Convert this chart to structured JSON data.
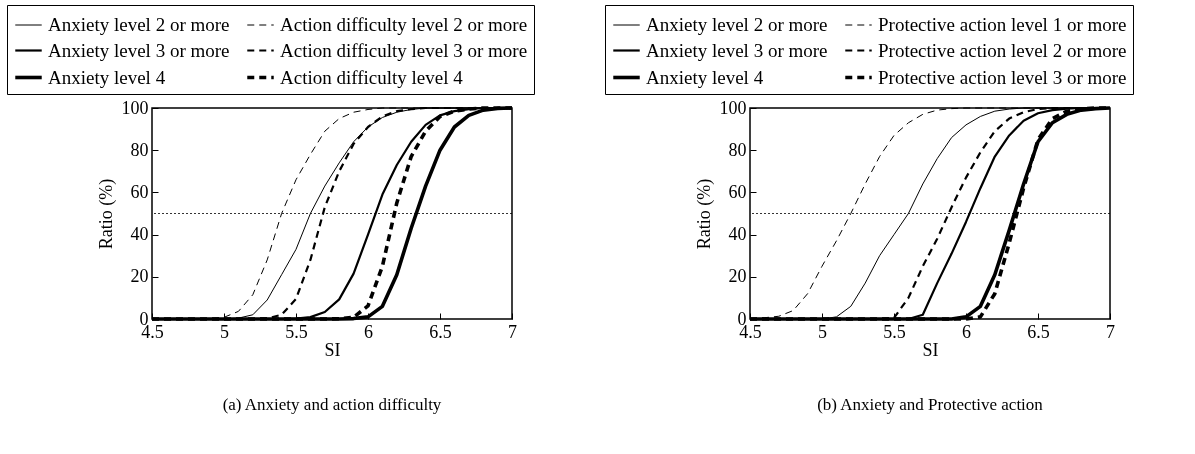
{
  "chart_data": [
    {
      "type": "line",
      "title": "(a) Anxiety and action difficulty",
      "xlabel": "SI",
      "ylabel": "Ratio (%)",
      "x": [
        4.5,
        4.6,
        4.7,
        4.8,
        4.9,
        5.0,
        5.1,
        5.2,
        5.3,
        5.4,
        5.5,
        5.6,
        5.7,
        5.8,
        5.9,
        6.0,
        6.1,
        6.2,
        6.3,
        6.4,
        6.5,
        6.6,
        6.7,
        6.8,
        6.9,
        7.0
      ],
      "xlim": [
        4.5,
        7
      ],
      "xticks": [
        4.5,
        5,
        5.5,
        6,
        6.5,
        7
      ],
      "ylim": [
        0,
        100
      ],
      "yticks": [
        0,
        20,
        40,
        60,
        80,
        100
      ],
      "grid": false,
      "legend": "top",
      "marker": "none",
      "ref_lines": [
        {
          "axis": "y",
          "value": 50,
          "line_style": "dotted",
          "color": "#000000"
        }
      ],
      "series": [
        {
          "name": "Anxiety level 2 or more",
          "color": "#000000",
          "line_style": "solid",
          "values": [
            0,
            0,
            0,
            0,
            0,
            0,
            0.4,
            2,
            9,
            21,
            33,
            50,
            63,
            74,
            84,
            91,
            95.5,
            98,
            99.3,
            100,
            100,
            100,
            100,
            100,
            100,
            100
          ]
        },
        {
          "name": "Anxiety level 3 or more",
          "color": "#000000",
          "line_style": "solid",
          "values": [
            0,
            0,
            0,
            0,
            0,
            0,
            0,
            0,
            0,
            0,
            0.2,
            0.9,
            3.3,
            9.3,
            21.5,
            40,
            59,
            73,
            84,
            92,
            96.5,
            98.5,
            99.5,
            100,
            100,
            100
          ]
        },
        {
          "name": "Anxiety level 4",
          "color": "#000000",
          "line_style": "solid",
          "values": [
            0,
            0,
            0,
            0,
            0,
            0,
            0,
            0,
            0,
            0,
            0,
            0,
            0,
            0,
            0.2,
            1,
            6,
            21,
            43,
            63,
            80,
            91,
            96.5,
            99,
            99.8,
            100
          ]
        },
        {
          "name": "Action difficulty level 2 or more",
          "color": "#000000",
          "line_style": "dashed",
          "values": [
            0,
            0,
            0,
            0,
            0.1,
            0.8,
            3.6,
            11.5,
            28,
            50,
            66,
            78,
            89,
            95,
            98,
            99.3,
            100,
            100,
            100,
            100,
            100,
            100,
            100,
            100,
            100,
            100
          ]
        },
        {
          "name": "Action difficulty level 3 or more",
          "color": "#000000",
          "line_style": "dashed",
          "values": [
            0,
            0,
            0,
            0,
            0,
            0,
            0,
            0,
            0.3,
            2,
            9.5,
            28,
            53,
            70,
            83,
            91,
            96,
            98.5,
            99.5,
            100,
            100,
            100,
            100,
            100,
            100,
            100
          ]
        },
        {
          "name": "Action difficulty level 4",
          "color": "#000000",
          "line_style": "dashed",
          "values": [
            0,
            0,
            0,
            0,
            0,
            0,
            0,
            0,
            0,
            0,
            0,
            0,
            0,
            0.1,
            0.8,
            6.2,
            25,
            55,
            77,
            89,
            96,
            98.5,
            99.5,
            100,
            100,
            100
          ]
        }
      ]
    },
    {
      "type": "line",
      "title": "(b) Anxiety and Protective action",
      "xlabel": "SI",
      "ylabel": "Ratio (%)",
      "x": [
        4.5,
        4.6,
        4.7,
        4.8,
        4.9,
        5.0,
        5.1,
        5.2,
        5.3,
        5.4,
        5.5,
        5.6,
        5.7,
        5.8,
        5.9,
        6.0,
        6.1,
        6.2,
        6.3,
        6.4,
        6.5,
        6.6,
        6.7,
        6.8,
        6.9,
        7.0
      ],
      "xlim": [
        4.5,
        7
      ],
      "xticks": [
        4.5,
        5,
        5.5,
        6,
        6.5,
        7
      ],
      "ylim": [
        0,
        100
      ],
      "yticks": [
        0,
        20,
        40,
        60,
        80,
        100
      ],
      "grid": false,
      "legend": "top",
      "marker": "none",
      "ref_lines": [
        {
          "axis": "y",
          "value": 50,
          "line_style": "dotted",
          "color": "#000000"
        }
      ],
      "series": [
        {
          "name": "Anxiety level 2 or more",
          "color": "#000000",
          "line_style": "solid",
          "values": [
            0,
            0,
            0,
            0,
            0,
            0,
            1,
            6,
            17,
            30,
            40,
            50,
            64,
            76,
            86,
            92,
            96,
            98.5,
            99.5,
            100,
            100,
            100,
            100,
            100,
            100,
            100
          ]
        },
        {
          "name": "Anxiety level 3 or more",
          "color": "#000000",
          "line_style": "solid",
          "values": [
            0,
            0,
            0,
            0,
            0,
            0,
            0,
            0,
            0,
            0,
            0,
            0,
            2,
            17,
            31,
            46,
            62,
            77,
            87,
            94,
            97.5,
            99,
            99.7,
            100,
            100,
            100
          ]
        },
        {
          "name": "Anxiety level 4",
          "color": "#000000",
          "line_style": "solid",
          "values": [
            0,
            0,
            0,
            0,
            0,
            0,
            0,
            0,
            0,
            0,
            0,
            0,
            0,
            0,
            0,
            1,
            6,
            21,
            42,
            64,
            84,
            93,
            97,
            99,
            99.7,
            100
          ]
        },
        {
          "name": "Protective action level 1 or more",
          "color": "#000000",
          "line_style": "dashed",
          "values": [
            0.2,
            0.6,
            1.3,
            4,
            12,
            25,
            37,
            50,
            64,
            77,
            87,
            93,
            97,
            99,
            99.7,
            100,
            100,
            100,
            100,
            100,
            100,
            100,
            100,
            100,
            100,
            100
          ]
        },
        {
          "name": "Protective action level 2 or more",
          "color": "#000000",
          "line_style": "dashed",
          "values": [
            0,
            0,
            0,
            0,
            0,
            0,
            0,
            0,
            0,
            0,
            0.5,
            10,
            25,
            38,
            53,
            67,
            79,
            89,
            95,
            98,
            99.5,
            100,
            100,
            100,
            100,
            100
          ]
        },
        {
          "name": "Protective action level 3 or more",
          "color": "#000000",
          "line_style": "dashed",
          "values": [
            0,
            0,
            0,
            0,
            0,
            0,
            0,
            0,
            0,
            0,
            0,
            0,
            0,
            0,
            0,
            0,
            1,
            12,
            36,
            62,
            85,
            95,
            98.5,
            99.5,
            100,
            100
          ]
        }
      ]
    }
  ]
}
